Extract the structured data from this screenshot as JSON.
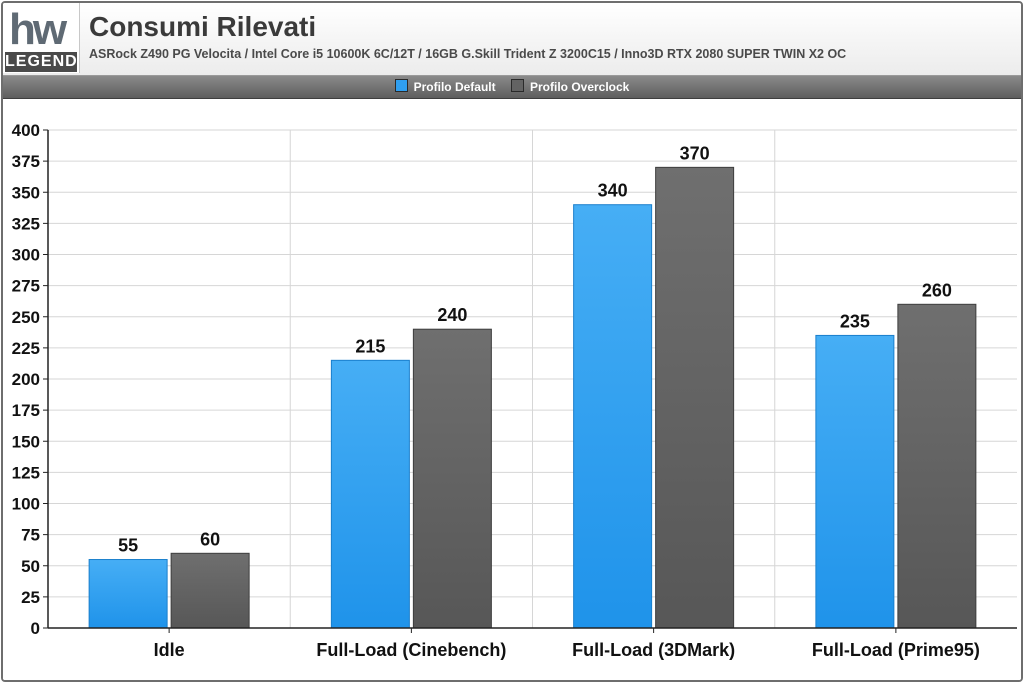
{
  "header": {
    "logo_text": "LEGEND",
    "logo_mark": "hw",
    "title": "Consumi Rilevati",
    "subtitle": "ASRock Z490 PG Velocita / Intel Core i5 10600K 6C/12T / 16GB G.Skill Trident Z 3200C15 / Inno3D RTX 2080 SUPER TWIN X2 OC"
  },
  "legend": {
    "items": [
      {
        "label": "Profilo Default",
        "color": "#2f9ff0"
      },
      {
        "label": "Profilo Overclock",
        "color": "#636363"
      }
    ],
    "placement": "top-center"
  },
  "colors": {
    "series_default": "#2f9ff0",
    "series_overclock": "#636363",
    "grid": "#d6d6d6",
    "legend_bar": "#6e6e6e"
  },
  "chart_data": {
    "type": "bar",
    "title": "Consumi Rilevati",
    "xlabel": "",
    "ylabel": "",
    "categories": [
      "Idle",
      "Full-Load (Cinebench)",
      "Full-Load (3DMark)",
      "Full-Load (Prime95)"
    ],
    "series": [
      {
        "name": "Profilo Default",
        "values": [
          55,
          215,
          340,
          235
        ]
      },
      {
        "name": "Profilo Overclock",
        "values": [
          60,
          240,
          370,
          260
        ]
      }
    ],
    "ylim": [
      0,
      400
    ],
    "yticks": [
      0,
      25,
      50,
      75,
      100,
      125,
      150,
      175,
      200,
      225,
      250,
      275,
      300,
      325,
      350,
      375,
      400
    ],
    "grid": true,
    "data_labels": true
  }
}
